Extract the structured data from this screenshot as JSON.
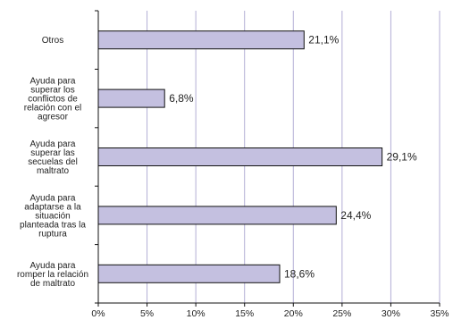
{
  "chart_data": {
    "type": "bar",
    "orientation": "horizontal",
    "categories": [
      [
        "Otros"
      ],
      [
        "Ayuda para",
        "superar los",
        "conflictos de",
        "relación con el",
        "agresor"
      ],
      [
        "Ayuda para",
        "superar las",
        "secuelas del",
        "maltrato"
      ],
      [
        "Ayuda para",
        "adaptarse a la",
        "situación",
        "planteada tras la",
        "ruptura"
      ],
      [
        "Ayuda para",
        "romper la relación",
        "de maltrato"
      ]
    ],
    "values": [
      21.1,
      6.8,
      29.1,
      24.4,
      18.6
    ],
    "value_labels": [
      "21,1%",
      "6,8%",
      "29,1%",
      "24,4%",
      "18,6%"
    ],
    "xlim": [
      0,
      35
    ],
    "xticks": [
      0,
      5,
      10,
      15,
      20,
      25,
      30,
      35
    ],
    "xtick_labels": [
      "0%",
      "5%",
      "10%",
      "15%",
      "20%",
      "25%",
      "30%",
      "35%"
    ],
    "title": "",
    "xlabel": "",
    "ylabel": "",
    "grid": "vertical",
    "legend": "none",
    "colors": {
      "bar_fill": "#c4c0e0",
      "bar_stroke": "#111111",
      "grid": "#b3aed6",
      "axis": "#111111"
    }
  }
}
